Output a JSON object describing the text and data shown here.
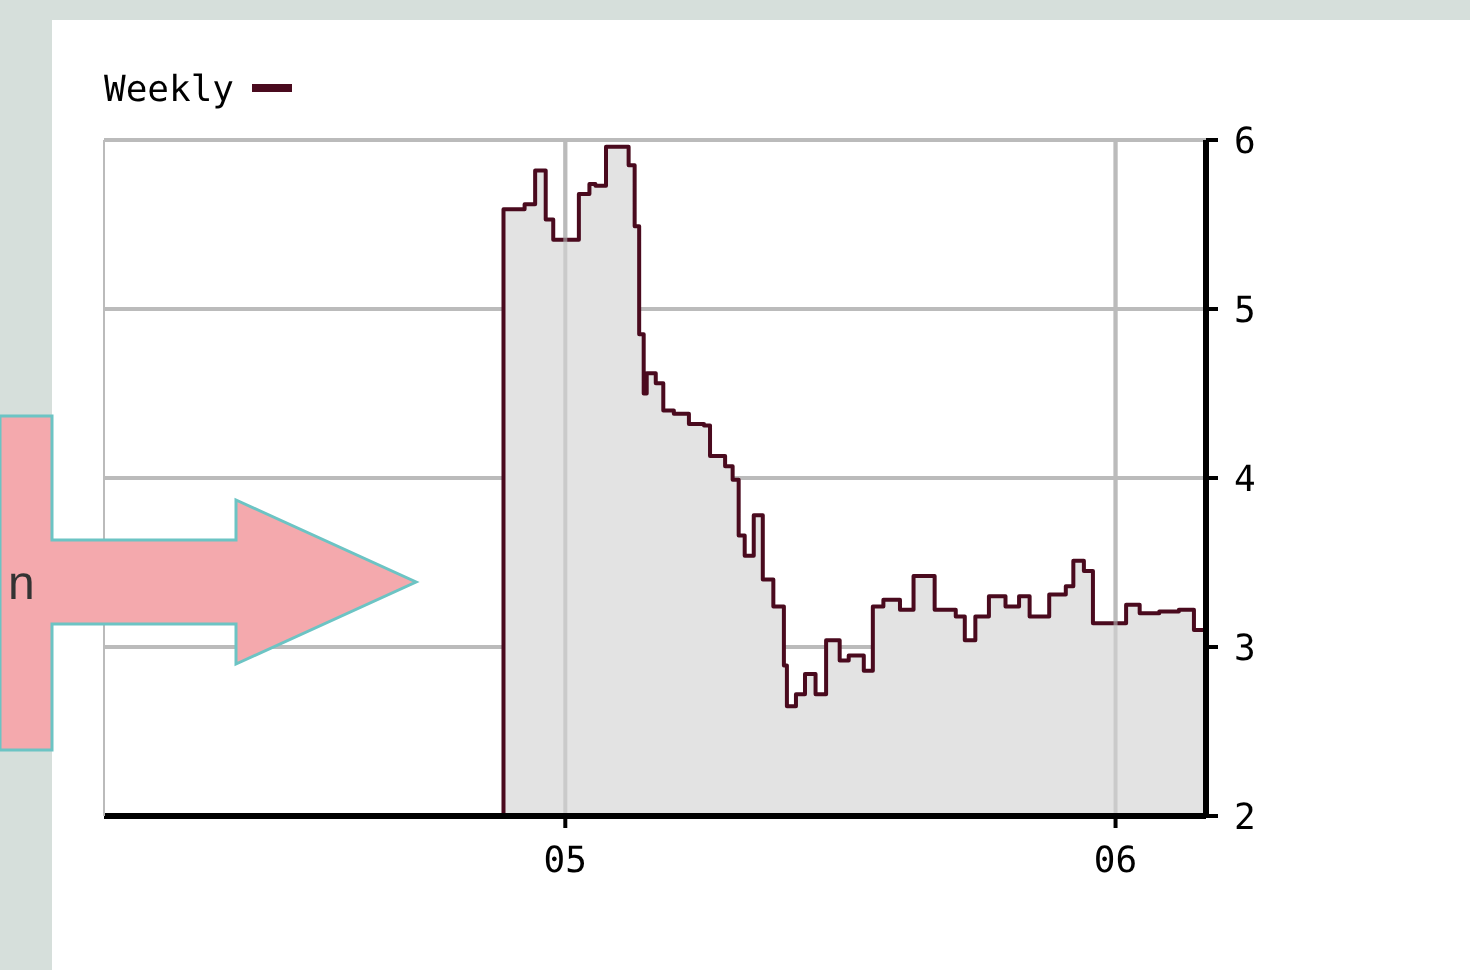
{
  "chart_data": {
    "type": "area",
    "legend": "top left",
    "grid": true,
    "annotations": [
      "n"
    ],
    "xlim": [
      "2004-03-01",
      "2006-03-02"
    ],
    "xticks": [
      {
        "value": "2005-01-01",
        "label": "05"
      },
      {
        "value": "2006-01-01",
        "label": "06"
      }
    ],
    "ylim": [
      2,
      6
    ],
    "yticks": [
      2,
      3,
      4,
      5,
      6
    ],
    "series": [
      {
        "name": "Weekly",
        "color": "#4a0a1e",
        "x": [
          "2004-11-21",
          "2004-12-05",
          "2004-12-12",
          "2004-12-19",
          "2004-12-24",
          "2005-01-04",
          "2005-01-10",
          "2005-01-17",
          "2005-01-21",
          "2005-01-28",
          "2005-02-12",
          "2005-02-16",
          "2005-02-19",
          "2005-02-22",
          "2005-02-24",
          "2005-03-02",
          "2005-03-07",
          "2005-03-14",
          "2005-03-24",
          "2005-04-03",
          "2005-04-07",
          "2005-04-17",
          "2005-04-22",
          "2005-04-26",
          "2005-04-30",
          "2005-05-06",
          "2005-05-12",
          "2005-05-19",
          "2005-05-26",
          "2005-05-28",
          "2005-06-03",
          "2005-06-09",
          "2005-06-16",
          "2005-06-23",
          "2005-07-02",
          "2005-07-08",
          "2005-07-18",
          "2005-07-24",
          "2005-07-31",
          "2005-08-11",
          "2005-08-20",
          "2005-09-03",
          "2005-09-17",
          "2005-09-23",
          "2005-09-30",
          "2005-10-09",
          "2005-10-20",
          "2005-10-29",
          "2005-11-05",
          "2005-11-18",
          "2005-11-29",
          "2005-12-04",
          "2005-12-11",
          "2005-12-17",
          "2005-12-31",
          "2006-01-08",
          "2006-01-17",
          "2006-01-30",
          "2006-02-12",
          "2006-02-22",
          "2006-03-02"
        ],
        "values": [
          5.59,
          5.62,
          5.82,
          5.53,
          5.41,
          5.41,
          5.68,
          5.74,
          5.73,
          5.96,
          5.85,
          5.49,
          4.85,
          4.5,
          4.62,
          4.56,
          4.4,
          4.38,
          4.32,
          4.31,
          4.13,
          4.07,
          3.99,
          3.66,
          3.54,
          3.78,
          3.4,
          3.24,
          2.89,
          2.65,
          2.72,
          2.84,
          2.72,
          3.04,
          2.92,
          2.95,
          2.86,
          3.24,
          3.28,
          3.22,
          3.42,
          3.22,
          3.18,
          3.04,
          3.18,
          3.3,
          3.24,
          3.3,
          3.18,
          3.31,
          3.36,
          3.51,
          3.45,
          3.14,
          3.14,
          3.25,
          3.2,
          3.21,
          3.22,
          3.1,
          3.12
        ]
      }
    ]
  }
}
